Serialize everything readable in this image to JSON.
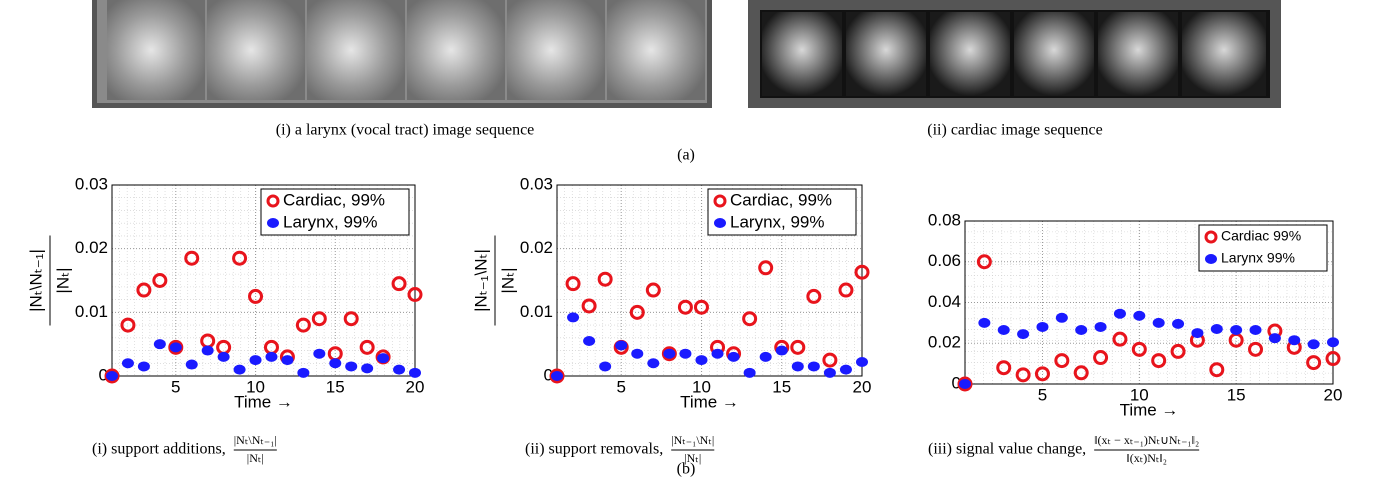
{
  "figure": {
    "top_captions": [
      "(i) a larynx (vocal tract) image sequence",
      "(ii) cardiac image sequence",
      "(a)"
    ],
    "bottom_captions": [
      {
        "text": "(i) support additions,",
        "num": "|Nₜ\\Nₜ₋₁|",
        "den": "|Nₜ|"
      },
      {
        "text": "(ii) support removals,",
        "num": "|Nₜ₋₁\\Nₜ|",
        "den": "|Nₜ|"
      },
      {
        "text": "(iii) signal value change,",
        "num": "‖(xₜ − xₜ₋₁)Nₜ∪Nₜ₋₁‖₂",
        "den": "‖(xₜ)Nₜ‖₂"
      }
    ],
    "panel_label": "(b)"
  },
  "chart_data": [
    {
      "type": "scatter",
      "xlabel": "Time →",
      "ylabel": {
        "num": "|Nₜ\\Nₜ₋₁|",
        "den": "|Nₜ|"
      },
      "x": [
        1,
        2,
        3,
        4,
        5,
        6,
        7,
        8,
        9,
        10,
        11,
        12,
        13,
        14,
        15,
        16,
        17,
        18,
        19,
        20
      ],
      "xlim": [
        1,
        20
      ],
      "xticks": [
        5,
        10,
        15,
        20
      ],
      "ylim": [
        0,
        0.03
      ],
      "yticks": [
        0,
        0.01,
        0.02,
        0.03
      ],
      "grid": true,
      "legend": "top-right",
      "series": [
        {
          "name": "Cardiac, 99%",
          "color": "#e8141c",
          "values": [
            0,
            0.008,
            0.0135,
            0.015,
            0.0045,
            0.0185,
            0.0055,
            0.0045,
            0.0185,
            0.0125,
            0.0045,
            0.003,
            0.008,
            0.009,
            0.0035,
            0.009,
            0.0045,
            0.003,
            0.0145,
            0.0128
          ]
        },
        {
          "name": "Larynx, 99%",
          "color": "#1a1aff",
          "values": [
            0,
            0.002,
            0.0015,
            0.005,
            0.0045,
            0.0018,
            0.004,
            0.003,
            0.001,
            0.0025,
            0.003,
            0.0025,
            0.0005,
            0.0035,
            0.002,
            0.0015,
            0.0012,
            0.0028,
            0.001,
            0.0005
          ]
        }
      ]
    },
    {
      "type": "scatter",
      "xlabel": "Time →",
      "ylabel": {
        "num": "|Nₜ₋₁\\Nₜ|",
        "den": "|Nₜ|"
      },
      "x": [
        1,
        2,
        3,
        4,
        5,
        6,
        7,
        8,
        9,
        10,
        11,
        12,
        13,
        14,
        15,
        16,
        17,
        18,
        19,
        20
      ],
      "xlim": [
        1,
        20
      ],
      "xticks": [
        5,
        10,
        15,
        20
      ],
      "ylim": [
        0,
        0.03
      ],
      "yticks": [
        0,
        0.01,
        0.02,
        0.03
      ],
      "grid": true,
      "legend": "top-right",
      "series": [
        {
          "name": "Cardiac, 99%",
          "color": "#e8141c",
          "values": [
            0,
            0.0145,
            0.011,
            0.0152,
            0.0045,
            0.01,
            0.0135,
            0.0035,
            0.0108,
            0.0108,
            0.0045,
            0.0035,
            0.009,
            0.017,
            0.0045,
            0.0045,
            0.0125,
            0.0025,
            0.0135,
            0.0163
          ]
        },
        {
          "name": "Larynx, 99%",
          "color": "#1a1aff",
          "values": [
            0,
            0.0092,
            0.0055,
            0.0015,
            0.0048,
            0.0035,
            0.002,
            0.0035,
            0.0035,
            0.0025,
            0.0035,
            0.003,
            0.0005,
            0.003,
            0.004,
            0.0015,
            0.0015,
            0.0005,
            0.001,
            0.0022
          ]
        }
      ]
    },
    {
      "type": "scatter",
      "xlabel": "Time →",
      "x": [
        1,
        2,
        3,
        4,
        5,
        6,
        7,
        8,
        9,
        10,
        11,
        12,
        13,
        14,
        15,
        16,
        17,
        18,
        19,
        20
      ],
      "xlim": [
        1,
        20
      ],
      "xticks": [
        5,
        10,
        15,
        20
      ],
      "ylim": [
        0,
        0.08
      ],
      "yticks": [
        0,
        0.02,
        0.04,
        0.06,
        0.08
      ],
      "grid": true,
      "legend": "top-right",
      "series": [
        {
          "name": "Cardiac 99%",
          "color": "#e8141c",
          "values": [
            0,
            0.06,
            0.008,
            0.0045,
            0.005,
            0.0115,
            0.0055,
            0.013,
            0.022,
            0.017,
            0.0115,
            0.016,
            0.0215,
            0.007,
            0.0215,
            0.017,
            0.026,
            0.018,
            0.0105,
            0.0125
          ]
        },
        {
          "name": "Larynx 99%",
          "color": "#1a1aff",
          "values": [
            0,
            0.03,
            0.0265,
            0.0245,
            0.028,
            0.0325,
            0.0265,
            0.028,
            0.0345,
            0.0335,
            0.03,
            0.0295,
            0.025,
            0.027,
            0.0265,
            0.0265,
            0.0225,
            0.0215,
            0.0195,
            0.0205
          ]
        }
      ]
    }
  ]
}
